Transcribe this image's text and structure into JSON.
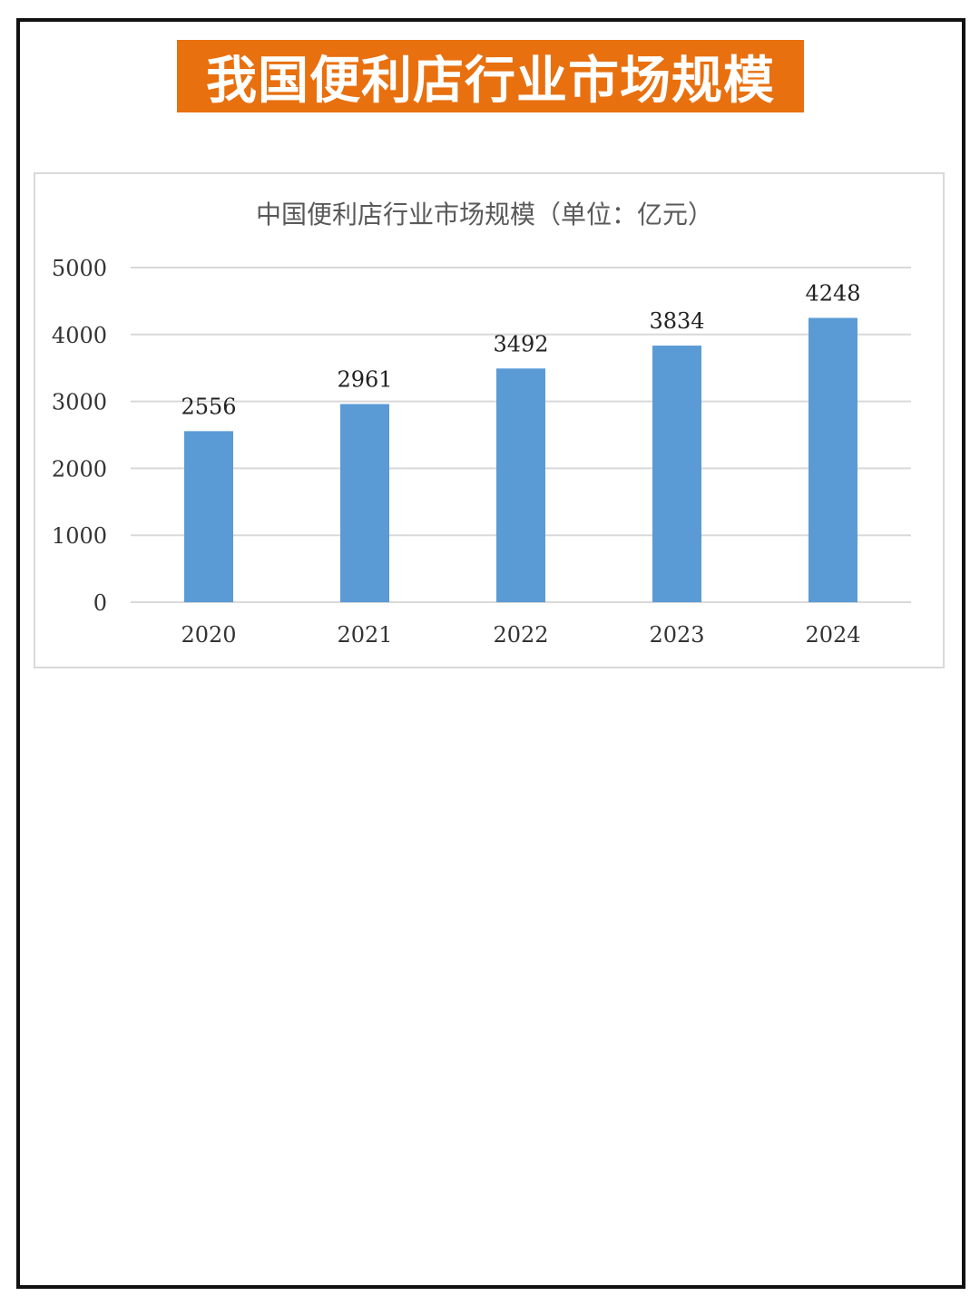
{
  "banner": {
    "title": "我国便利店行业市场规模",
    "color": "#e8700f"
  },
  "chart_data": {
    "type": "bar",
    "title": "中国便利店行业市场规模（单位：亿元）",
    "xlabel": "",
    "ylabel": "",
    "categories": [
      "2020",
      "2021",
      "2022",
      "2023",
      "2024"
    ],
    "values": [
      2556,
      2961,
      3492,
      3834,
      4248
    ],
    "ylim": [
      0,
      5000
    ],
    "yticks": [
      0,
      1000,
      2000,
      3000,
      4000,
      5000
    ],
    "grid": true,
    "legend": "none",
    "bar_color": "#5b9bd5",
    "data_labels": true
  }
}
